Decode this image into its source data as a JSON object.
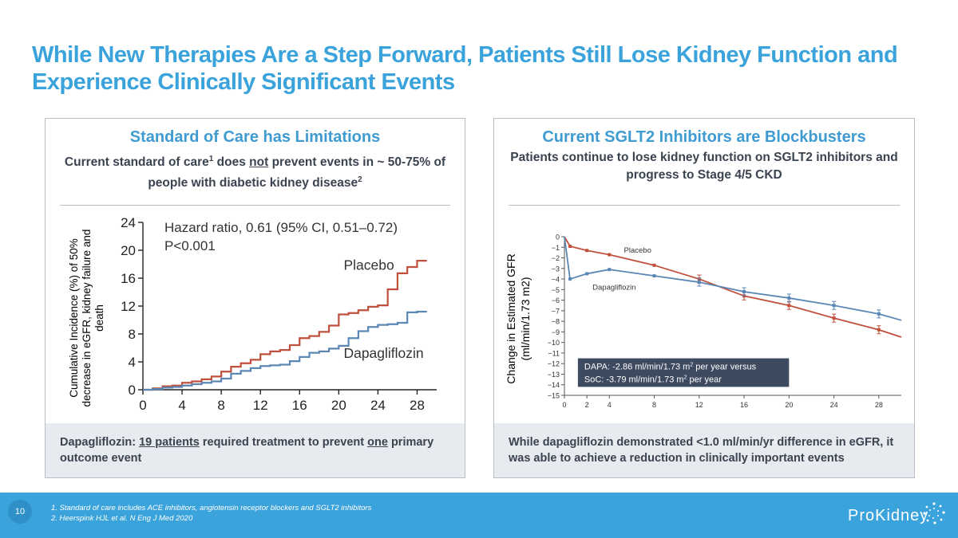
{
  "title": "While New Therapies Are a Step Forward, Patients Still Lose Kidney Function and Experience Clinically Significant Events",
  "left_panel": {
    "title": "Standard of Care has Limitations",
    "subtitle_a": "Current standard of care",
    "subtitle_sup1": "1",
    "subtitle_b": " does ",
    "subtitle_not": "not",
    "subtitle_c": " prevent events in ~ 50-75% of people with diabetic kidney disease",
    "subtitle_sup2": "2",
    "foot_a": "Dapagliflozin: ",
    "foot_u1": "19 patients",
    "foot_b": " required treatment to prevent ",
    "foot_u2": "one",
    "foot_c": " primary outcome event"
  },
  "right_panel": {
    "title": "Current SGLT2 Inhibitors are Blockbusters",
    "subtitle": "Patients continue to lose kidney function on SGLT2 inhibitors and progress to Stage 4/5 CKD",
    "foot": "While dapagliflozin demonstrated <1.0 ml/min/yr difference in eGFR, it was able to achieve a reduction in clinically important events"
  },
  "footer": {
    "page": "10",
    "note1": "1.   Standard of  care includes ACE inhibitors, angiotensin receptor blockers and SGLT2 inhibitors",
    "note2": "2.   Heerspink HJL et al. N Eng J Med 2020",
    "logo": "ProKidney"
  },
  "colors": {
    "accent": "#3aa3dc",
    "placebo": "#c0503b",
    "dapa": "#5b87b5",
    "navy": "#3d4a60"
  },
  "chart_data": [
    {
      "type": "line",
      "ylabel": "Cumulative Incidence (%) of 50% decrease in eGFR, kidney failure and death",
      "annotation_line1": "Hazard ratio, 0.61 (95% CI, 0.51–0.72)",
      "annotation_line2": "P<0.001",
      "xlim": [
        0,
        30
      ],
      "ylim": [
        0,
        24
      ],
      "xticks": [
        0,
        4,
        8,
        12,
        16,
        20,
        24,
        28
      ],
      "yticks": [
        0,
        4,
        8,
        12,
        16,
        20,
        24
      ],
      "series": [
        {
          "name": "Placebo",
          "x": [
            0,
            1,
            2,
            3,
            4,
            5,
            6,
            7,
            8,
            9,
            10,
            11,
            12,
            13,
            14,
            15,
            16,
            17,
            18,
            19,
            20,
            21,
            22,
            23,
            24,
            25,
            26,
            27,
            28,
            29
          ],
          "y": [
            0,
            0.2,
            0.5,
            0.6,
            1.0,
            1.2,
            1.5,
            1.9,
            2.6,
            3.3,
            3.8,
            4.3,
            5.1,
            5.5,
            5.7,
            6.4,
            7.4,
            7.7,
            8.3,
            9.2,
            10.8,
            11.0,
            11.4,
            11.9,
            12.1,
            14.4,
            16.7,
            17.6,
            18.5,
            18.5
          ]
        },
        {
          "name": "Dapagliflozin",
          "x": [
            0,
            1,
            2,
            3,
            4,
            5,
            6,
            7,
            8,
            9,
            10,
            11,
            12,
            13,
            14,
            15,
            16,
            17,
            18,
            19,
            20,
            21,
            22,
            23,
            24,
            25,
            26,
            27,
            28,
            29
          ],
          "y": [
            0,
            0.1,
            0.3,
            0.4,
            0.6,
            0.8,
            1.0,
            1.2,
            1.6,
            2.3,
            2.7,
            3.1,
            3.4,
            3.5,
            3.6,
            4.1,
            4.7,
            5.3,
            5.5,
            5.9,
            6.3,
            7.4,
            8.4,
            9.0,
            9.3,
            9.4,
            9.6,
            11.1,
            11.2,
            11.2
          ]
        }
      ]
    },
    {
      "type": "line",
      "ylabel": "Change in Estimated GFR (ml/min/1.73 m2)",
      "box_line1": "DAPA: -2.86 ml/min/1.73 m",
      "box_line1_sup": "2",
      "box_line1_end": "  per year versus",
      "box_line2": "SoC: -3.79 ml/min/1.73 m",
      "box_line2_sup": "2",
      "box_line2_end": "  per year",
      "xlim": [
        0,
        30
      ],
      "ylim": [
        -15,
        0
      ],
      "xticks": [
        0,
        2,
        4,
        8,
        12,
        16,
        20,
        24,
        28
      ],
      "yticks": [
        0,
        -1,
        -2,
        -3,
        -4,
        -5,
        -6,
        -7,
        -8,
        -9,
        -10,
        -11,
        -12,
        -13,
        -14,
        -15
      ],
      "series": [
        {
          "name": "Placebo",
          "x": [
            0,
            0.5,
            2,
            4,
            8,
            12,
            16,
            20,
            24,
            28,
            30
          ],
          "y": [
            0,
            -0.9,
            -1.3,
            -1.7,
            -2.7,
            -4.0,
            -5.6,
            -6.5,
            -7.7,
            -8.8,
            -9.5
          ]
        },
        {
          "name": "Dapagliflozin",
          "x": [
            0,
            0.5,
            2,
            4,
            8,
            12,
            16,
            20,
            24,
            28,
            30
          ],
          "y": [
            0,
            -4.0,
            -3.5,
            -3.1,
            -3.7,
            -4.3,
            -5.2,
            -5.8,
            -6.5,
            -7.3,
            -7.9
          ]
        }
      ]
    }
  ]
}
